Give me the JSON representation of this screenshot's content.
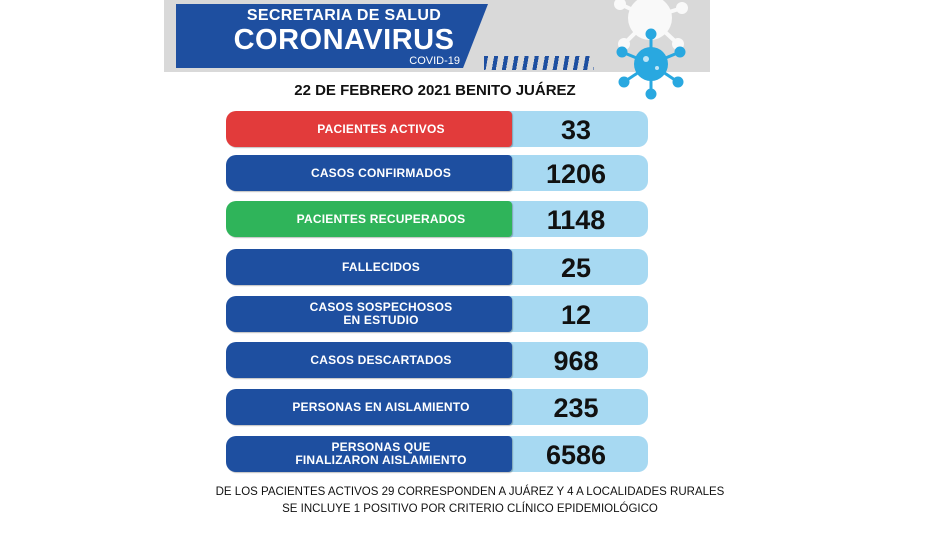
{
  "header": {
    "line1": "SECRETARIA DE SALUD",
    "line2": "CORONAVIRUS",
    "line3": "COVID-19"
  },
  "date_line": "22 DE FEBRERO 2021 BENITO JUÁREZ",
  "colors": {
    "blue": "#1e4fa0",
    "red": "#e23b3b",
    "green": "#2fb45a",
    "light_blue": "#a7d9f2",
    "virus": "#29a8e0"
  },
  "stats": [
    {
      "label_line1": "PACIENTES ACTIVOS",
      "label_line2": "",
      "value": "33",
      "color": "#e23b3b"
    },
    {
      "label_line1": "CASOS CONFIRMADOS",
      "label_line2": "",
      "value": "1206",
      "color": "#1e4fa0"
    },
    {
      "label_line1": "PACIENTES RECUPERADOS",
      "label_line2": "",
      "value": "1148",
      "color": "#2fb45a"
    },
    {
      "label_line1": "FALLECIDOS",
      "label_line2": "",
      "value": "25",
      "color": "#1e4fa0"
    },
    {
      "label_line1": "CASOS SOSPECHOSOS",
      "label_line2": "EN ESTUDIO",
      "value": "12",
      "color": "#1e4fa0"
    },
    {
      "label_line1": "CASOS DESCARTADOS",
      "label_line2": "",
      "value": "968",
      "color": "#1e4fa0"
    },
    {
      "label_line1": "PERSONAS EN AISLAMIENTO",
      "label_line2": "",
      "value": "235",
      "color": "#1e4fa0"
    },
    {
      "label_line1": "PERSONAS QUE",
      "label_line2": "FINALIZARON AISLAMIENTO",
      "value": "6586",
      "color": "#1e4fa0"
    }
  ],
  "footer": {
    "line1": "DE LOS PACIENTES ACTIVOS 29 CORRESPONDEN A JUÁREZ Y 4 A LOCALIDADES RURALES",
    "line2": "SE INCLUYE 1 POSITIVO  POR  CRITERIO CLÍNICO EPIDEMIOLÓGICO"
  }
}
